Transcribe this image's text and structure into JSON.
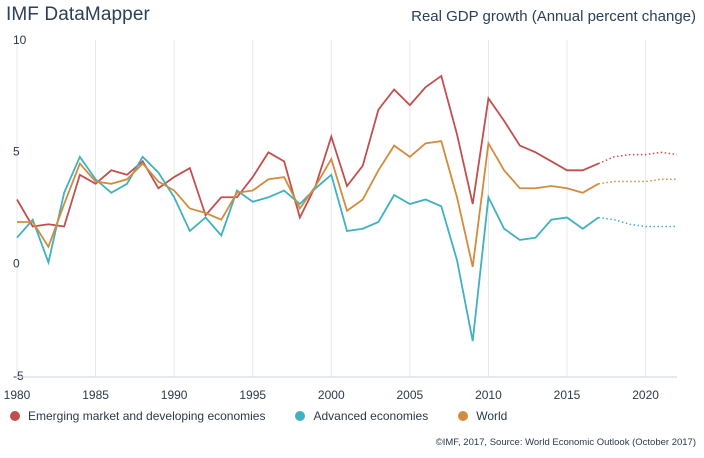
{
  "header": {
    "app_title": "IMF DataMapper",
    "chart_title": "Real GDP growth (Annual percent change)"
  },
  "footer": {
    "source": "©IMF, 2017, Source: World Economic Outlook (October 2017)"
  },
  "chart_data": {
    "type": "line",
    "title": "Real GDP growth (Annual percent change)",
    "xlim": [
      1980,
      2022
    ],
    "ylim": [
      -5,
      10
    ],
    "x_ticks": [
      1980,
      1985,
      1990,
      1995,
      2000,
      2005,
      2010,
      2015,
      2020
    ],
    "y_ticks": [
      10,
      5,
      0,
      -5
    ],
    "grid": "vertical",
    "legend_position": "bottom-left",
    "last_actual_year": 2017,
    "x": [
      1980,
      1981,
      1982,
      1983,
      1984,
      1985,
      1986,
      1987,
      1988,
      1989,
      1990,
      1991,
      1992,
      1993,
      1994,
      1995,
      1996,
      1997,
      1998,
      1999,
      2000,
      2001,
      2002,
      2003,
      2004,
      2005,
      2006,
      2007,
      2008,
      2009,
      2010,
      2011,
      2012,
      2013,
      2014,
      2015,
      2016,
      2017,
      2018,
      2019,
      2020,
      2021,
      2022
    ],
    "series": [
      {
        "name": "Emerging market and developing economies",
        "color": "#c0504d",
        "values": [
          2.9,
          1.7,
          1.8,
          1.7,
          4.0,
          3.6,
          4.2,
          4.0,
          4.6,
          3.4,
          3.9,
          4.3,
          2.2,
          3.0,
          3.0,
          3.9,
          5.0,
          4.6,
          2.1,
          3.5,
          5.7,
          3.5,
          4.4,
          6.9,
          7.8,
          7.1,
          7.9,
          8.4,
          5.8,
          2.7,
          7.4,
          6.4,
          5.3,
          5.0,
          4.6,
          4.2,
          4.2,
          4.5,
          4.8,
          4.9,
          4.9,
          5.0,
          4.9
        ]
      },
      {
        "name": "Advanced economies",
        "color": "#3fb1c1",
        "values": [
          1.2,
          2.0,
          0.1,
          3.2,
          4.8,
          3.8,
          3.2,
          3.6,
          4.8,
          4.1,
          3.0,
          1.5,
          2.1,
          1.3,
          3.3,
          2.8,
          3.0,
          3.3,
          2.7,
          3.4,
          4.0,
          1.5,
          1.6,
          1.9,
          3.1,
          2.7,
          2.9,
          2.6,
          0.2,
          -3.4,
          3.0,
          1.6,
          1.1,
          1.2,
          2.0,
          2.1,
          1.6,
          2.1,
          2.0,
          1.8,
          1.7,
          1.7,
          1.7
        ]
      },
      {
        "name": "World",
        "color": "#d08c3f",
        "values": [
          1.9,
          1.9,
          0.8,
          2.7,
          4.5,
          3.7,
          3.6,
          3.8,
          4.5,
          3.7,
          3.3,
          2.5,
          2.3,
          2.0,
          3.2,
          3.3,
          3.8,
          3.9,
          2.5,
          3.5,
          4.7,
          2.4,
          2.9,
          4.2,
          5.3,
          4.8,
          5.4,
          5.5,
          3.0,
          -0.1,
          5.4,
          4.2,
          3.4,
          3.4,
          3.5,
          3.4,
          3.2,
          3.6,
          3.7,
          3.7,
          3.7,
          3.8,
          3.8
        ]
      }
    ]
  }
}
